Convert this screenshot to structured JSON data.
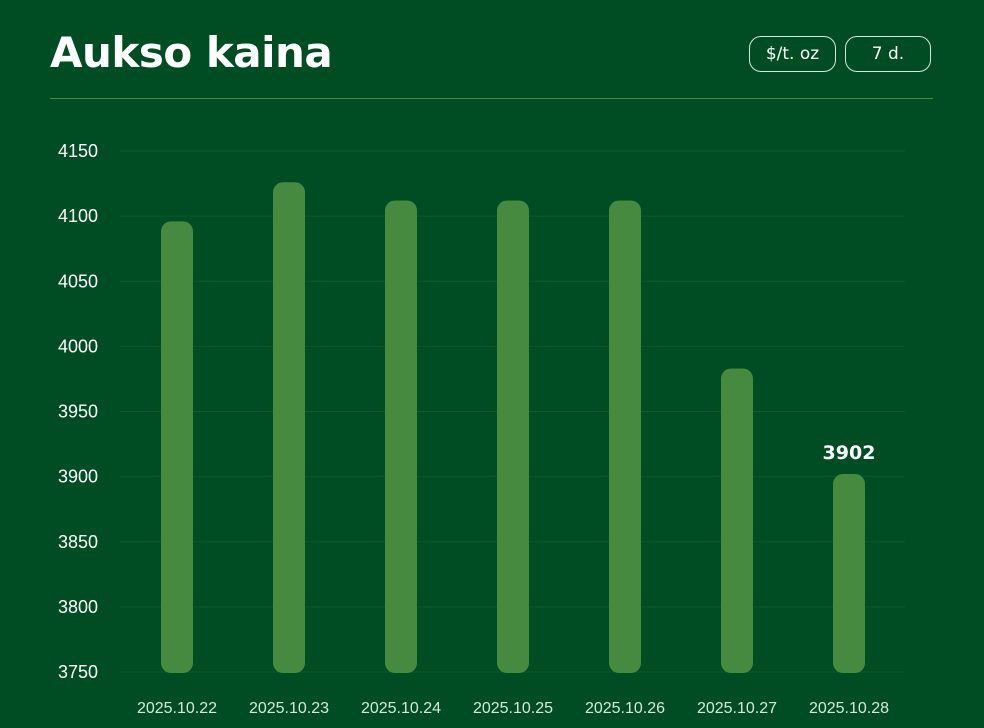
{
  "header": {
    "title": "Aukso kaina",
    "unit_button": "$/t. oz",
    "period_button": "7 d."
  },
  "chart_data": {
    "type": "bar",
    "categories": [
      "2025.10.22",
      "2025.10.23",
      "2025.10.24",
      "2025.10.25",
      "2025.10.26",
      "2025.10.27",
      "2025.10.28"
    ],
    "values": [
      4096,
      4126,
      4112,
      4112,
      4112,
      3983,
      3902
    ],
    "ylim": [
      3750,
      4150
    ],
    "yticks": [
      3750,
      3800,
      3850,
      3900,
      3950,
      4000,
      4050,
      4100,
      4150
    ],
    "grid": true,
    "highlight_label": "3902",
    "bar_color": "#458a3f",
    "background": "#004d23"
  }
}
